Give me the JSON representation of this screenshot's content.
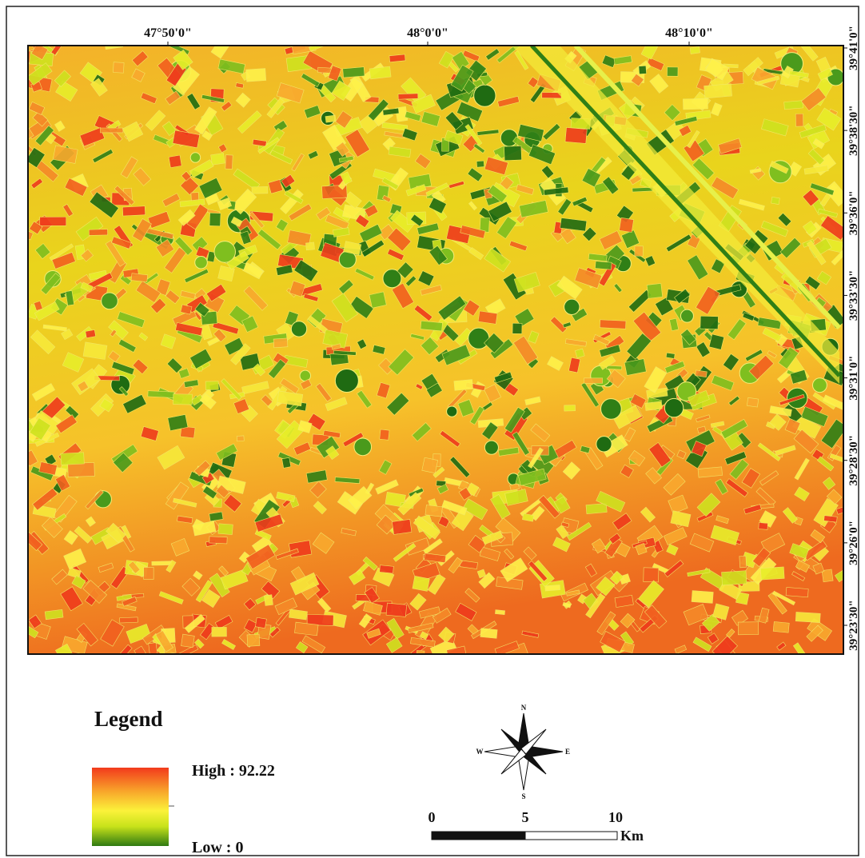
{
  "map": {
    "longitude_labels": [
      "47°50'0\"",
      "48°0'0\"",
      "48°10'0\""
    ],
    "latitude_labels": [
      "39°41'0\"",
      "39°38'30\"",
      "39°36'0\"",
      "39°33'30\"",
      "39°31'0\"",
      "39°28'30\"",
      "39°26'0\"",
      "39°23'30\""
    ]
  },
  "legend": {
    "title": "Legend",
    "high": "High : 92.22",
    "low": "Low : 0"
  },
  "compass": {
    "north": "N",
    "south": "S",
    "west": "W",
    "east": "E"
  },
  "scale_bar": {
    "labels": [
      "0",
      "5",
      "10"
    ],
    "unit": "Km"
  }
}
